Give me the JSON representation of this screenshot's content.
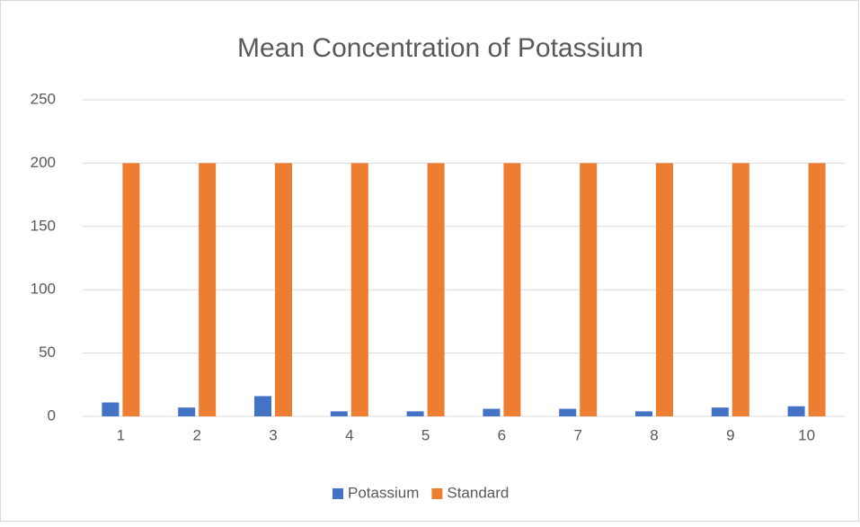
{
  "chart_data": {
    "type": "bar",
    "title": "Mean Concentration of Potassium",
    "categories": [
      "1",
      "2",
      "3",
      "4",
      "5",
      "6",
      "7",
      "8",
      "9",
      "10"
    ],
    "series": [
      {
        "name": "Potassium",
        "color": "#4472c4",
        "values": [
          11,
          7,
          16,
          4,
          4,
          6,
          6,
          4,
          7,
          8
        ]
      },
      {
        "name": "Standard",
        "color": "#ed7d31",
        "values": [
          200,
          200,
          200,
          200,
          200,
          200,
          200,
          200,
          200,
          200
        ]
      }
    ],
    "ylim": [
      0,
      250
    ],
    "yticks": [
      0,
      50,
      100,
      150,
      200,
      250
    ],
    "grid": true,
    "legend": "bottom"
  }
}
